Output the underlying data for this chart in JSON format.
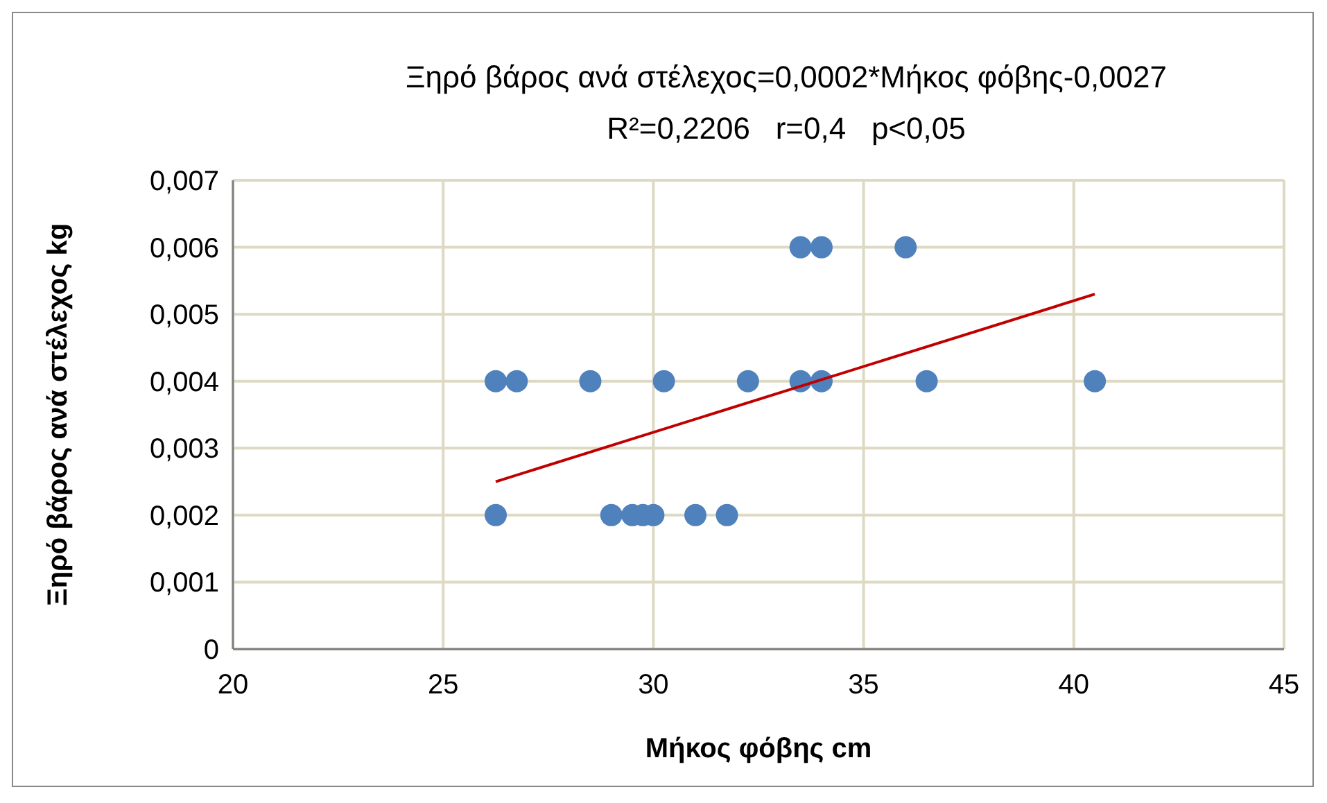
{
  "chart_data": {
    "type": "scatter",
    "title": "Ξηρό βάρος ανά στέλεχος=0,0002*Μήκος φόβης-0,0027",
    "subtitle": "R²=0,2206   r=0,4   p<0,05",
    "xlabel": "Μήκος φόβης cm",
    "ylabel": "Ξηρό βάρος ανά στέλεχος kg",
    "xlim": [
      20,
      45
    ],
    "xticks": [
      20,
      25,
      30,
      35,
      40,
      45
    ],
    "ylim": [
      0,
      0.007
    ],
    "yticks": [
      0,
      {
        "value": 0.001,
        "label": "0,001"
      },
      {
        "value": 0.002,
        "label": "0,002"
      },
      {
        "value": 0.003,
        "label": "0,003"
      },
      {
        "value": 0.004,
        "label": "0,004"
      },
      {
        "value": 0.005,
        "label": "0,005"
      },
      {
        "value": 0.006,
        "label": "0,006"
      },
      {
        "value": 0.007,
        "label": "0,007"
      }
    ],
    "grid": true,
    "marker": "circle",
    "series": [
      {
        "color": "#4f81bd",
        "x": [
          26.25,
          26.75,
          28.5,
          30.25,
          32.25,
          33.5,
          34,
          36.5,
          40.5,
          33.5,
          34,
          36,
          26.25,
          29,
          29.5,
          29.75,
          30,
          31,
          31.75
        ],
        "values": [
          0.004,
          0.004,
          0.004,
          0.004,
          0.004,
          0.004,
          0.004,
          0.004,
          0.004,
          0.006,
          0.006,
          0.006,
          0.002,
          0.002,
          0.002,
          0.002,
          0.002,
          0.002,
          0.002
        ]
      },
      {
        "type": "line",
        "color": "#c00000",
        "marker": "none",
        "x": [
          26.25,
          40.5
        ],
        "values": [
          0.0025,
          0.0053
        ]
      }
    ]
  }
}
